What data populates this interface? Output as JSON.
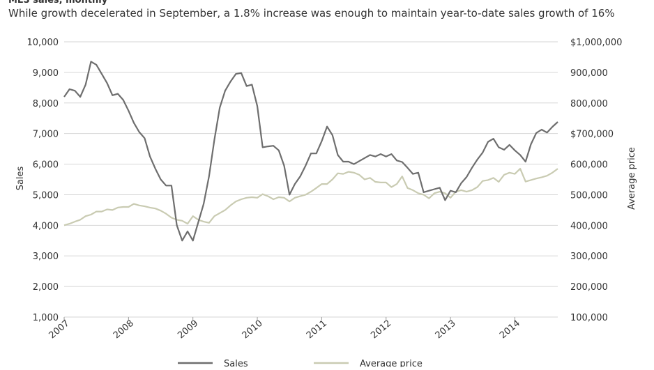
{
  "chart_data": {
    "type": "line",
    "title": "MLS sales, monthly",
    "subtitle": "While growth decelerated in September, a 1.8% increase was enough to maintain year-to-date sales growth of 16%",
    "y_label": "Sales",
    "y2_label": "Average price",
    "categories": [
      "2007",
      null,
      null,
      null,
      null,
      null,
      null,
      null,
      null,
      null,
      null,
      null,
      "2008",
      null,
      null,
      null,
      null,
      null,
      null,
      null,
      null,
      null,
      null,
      null,
      "2009",
      null,
      null,
      null,
      null,
      null,
      null,
      null,
      null,
      null,
      null,
      null,
      "2010",
      null,
      null,
      null,
      null,
      null,
      null,
      null,
      null,
      null,
      null,
      null,
      "2011",
      null,
      null,
      null,
      null,
      null,
      null,
      null,
      null,
      null,
      null,
      null,
      "2012",
      null,
      null,
      null,
      null,
      null,
      null,
      null,
      null,
      null,
      null,
      null,
      "2013",
      null,
      null,
      null,
      null,
      null,
      null,
      null,
      null,
      null,
      null,
      null,
      "2014",
      null,
      null,
      null,
      null,
      null,
      null,
      null,
      null
    ],
    "series": [
      {
        "name": "Sales",
        "color": "#6e6e6e",
        "values": [
          8200,
          8450,
          8400,
          8200,
          8600,
          9350,
          9250,
          8950,
          8650,
          8250,
          8300,
          8100,
          7750,
          7350,
          7050,
          6850,
          6250,
          5850,
          5500,
          5300,
          5300,
          4000,
          3500,
          3800,
          3500,
          4100,
          4700,
          5600,
          6800,
          7850,
          8400,
          8700,
          8950,
          8980,
          8550,
          8600,
          7900,
          6550,
          6580,
          6600,
          6450,
          5950,
          5000,
          5350,
          5600,
          5950,
          6350,
          6350,
          6750,
          7230,
          6950,
          6300,
          6080,
          6080,
          6000,
          6100,
          6200,
          6300,
          6250,
          6330,
          6250,
          6330,
          6120,
          6070,
          5880,
          5680,
          5720,
          5080,
          5130,
          5180,
          5230,
          4820,
          5130,
          5080,
          5380,
          5580,
          5880,
          6150,
          6380,
          6730,
          6830,
          6550,
          6470,
          6630,
          6450,
          6300,
          6080,
          6650,
          7020,
          7130,
          7030,
          7220,
          7380
        ]
      },
      {
        "name": "Average price",
        "color": "#c9cbb2",
        "axis": "y2",
        "values": [
          400000,
          405000,
          412000,
          418000,
          430000,
          435000,
          445000,
          445000,
          452000,
          450000,
          458000,
          460000,
          460000,
          470000,
          465000,
          462000,
          458000,
          455000,
          448000,
          438000,
          425000,
          418000,
          415000,
          405000,
          430000,
          418000,
          412000,
          408000,
          430000,
          440000,
          450000,
          465000,
          478000,
          485000,
          490000,
          492000,
          490000,
          502000,
          495000,
          485000,
          492000,
          490000,
          478000,
          490000,
          495000,
          500000,
          510000,
          522000,
          535000,
          535000,
          550000,
          570000,
          568000,
          575000,
          572000,
          565000,
          550000,
          555000,
          542000,
          540000,
          540000,
          525000,
          535000,
          560000,
          522000,
          515000,
          505000,
          500000,
          488000,
          505000,
          510000,
          505000,
          490000,
          510000,
          515000,
          510000,
          515000,
          525000,
          545000,
          548000,
          555000,
          542000,
          565000,
          572000,
          568000,
          585000,
          543000,
          548000,
          553000,
          557000,
          562000,
          572000,
          585000
        ]
      }
    ],
    "ylim": [
      1000,
      10000
    ],
    "yticks": [
      {
        "value": 1000,
        "label": "1,000"
      },
      {
        "value": 2000,
        "label": "2,000"
      },
      {
        "value": 3000,
        "label": "3,000"
      },
      {
        "value": 4000,
        "label": "4,000"
      },
      {
        "value": 5000,
        "label": "5,000"
      },
      {
        "value": 6000,
        "label": "6,000"
      },
      {
        "value": 7000,
        "label": "7,000"
      },
      {
        "value": 8000,
        "label": "8,000"
      },
      {
        "value": 9000,
        "label": "9,000"
      },
      {
        "value": 10000,
        "label": "10,000"
      }
    ],
    "y2lim": [
      100000,
      1000000
    ],
    "y2ticks": [
      {
        "value": 100000,
        "label": "100,000"
      },
      {
        "value": 200000,
        "label": "200,000"
      },
      {
        "value": 300000,
        "label": "300,000"
      },
      {
        "value": 400000,
        "label": "400,000"
      },
      {
        "value": 500000,
        "label": "500,000"
      },
      {
        "value": 600000,
        "label": "600,000"
      },
      {
        "value": 700000,
        "label": "$700,000"
      },
      {
        "value": 800000,
        "label": "800,000"
      },
      {
        "value": 900000,
        "label": "900,000"
      },
      {
        "value": 1000000,
        "label": "$1,000,000"
      }
    ],
    "grid": true,
    "legend": "bottom"
  }
}
